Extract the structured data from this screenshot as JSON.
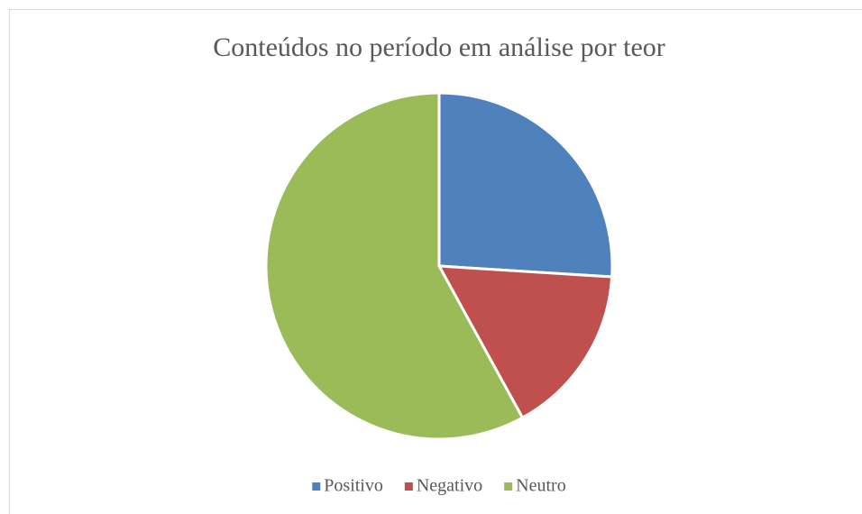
{
  "chart_data": {
    "type": "pie",
    "title": "Conteúdos no período em análise por teor",
    "categories": [
      "Positivo",
      "Negativo",
      "Neutro"
    ],
    "values": [
      26,
      16,
      58
    ],
    "colors": [
      "#4f81bd",
      "#c0504d",
      "#9bbb59"
    ],
    "legend": "bottom"
  }
}
